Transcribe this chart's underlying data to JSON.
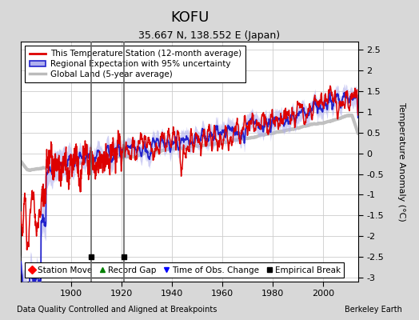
{
  "title": "KOFU",
  "subtitle": "35.667 N, 138.552 E (Japan)",
  "ylabel": "Temperature Anomaly (°C)",
  "xlim": [
    1880,
    2014
  ],
  "ylim": [
    -3.1,
    2.7
  ],
  "yticks": [
    -3,
    -2.5,
    -2,
    -1.5,
    -1,
    -0.5,
    0,
    0.5,
    1,
    1.5,
    2,
    2.5
  ],
  "xticks": [
    1900,
    1920,
    1940,
    1960,
    1980,
    2000
  ],
  "outer_bg_color": "#d8d8d8",
  "plot_bg_color": "#ffffff",
  "legend_entries": [
    "This Temperature Station (12-month average)",
    "Regional Expectation with 95% uncertainty",
    "Global Land (5-year average)"
  ],
  "station_line_color": "#dd0000",
  "regional_line_color": "#2222cc",
  "regional_fill_color": "#b0b0ee",
  "global_line_color": "#bbbbbb",
  "empirical_breaks": [
    1908,
    1921
  ],
  "break_marker_y": -2.5,
  "footer_left": "Data Quality Controlled and Aligned at Breakpoints",
  "footer_right": "Berkeley Earth",
  "seed": 123
}
